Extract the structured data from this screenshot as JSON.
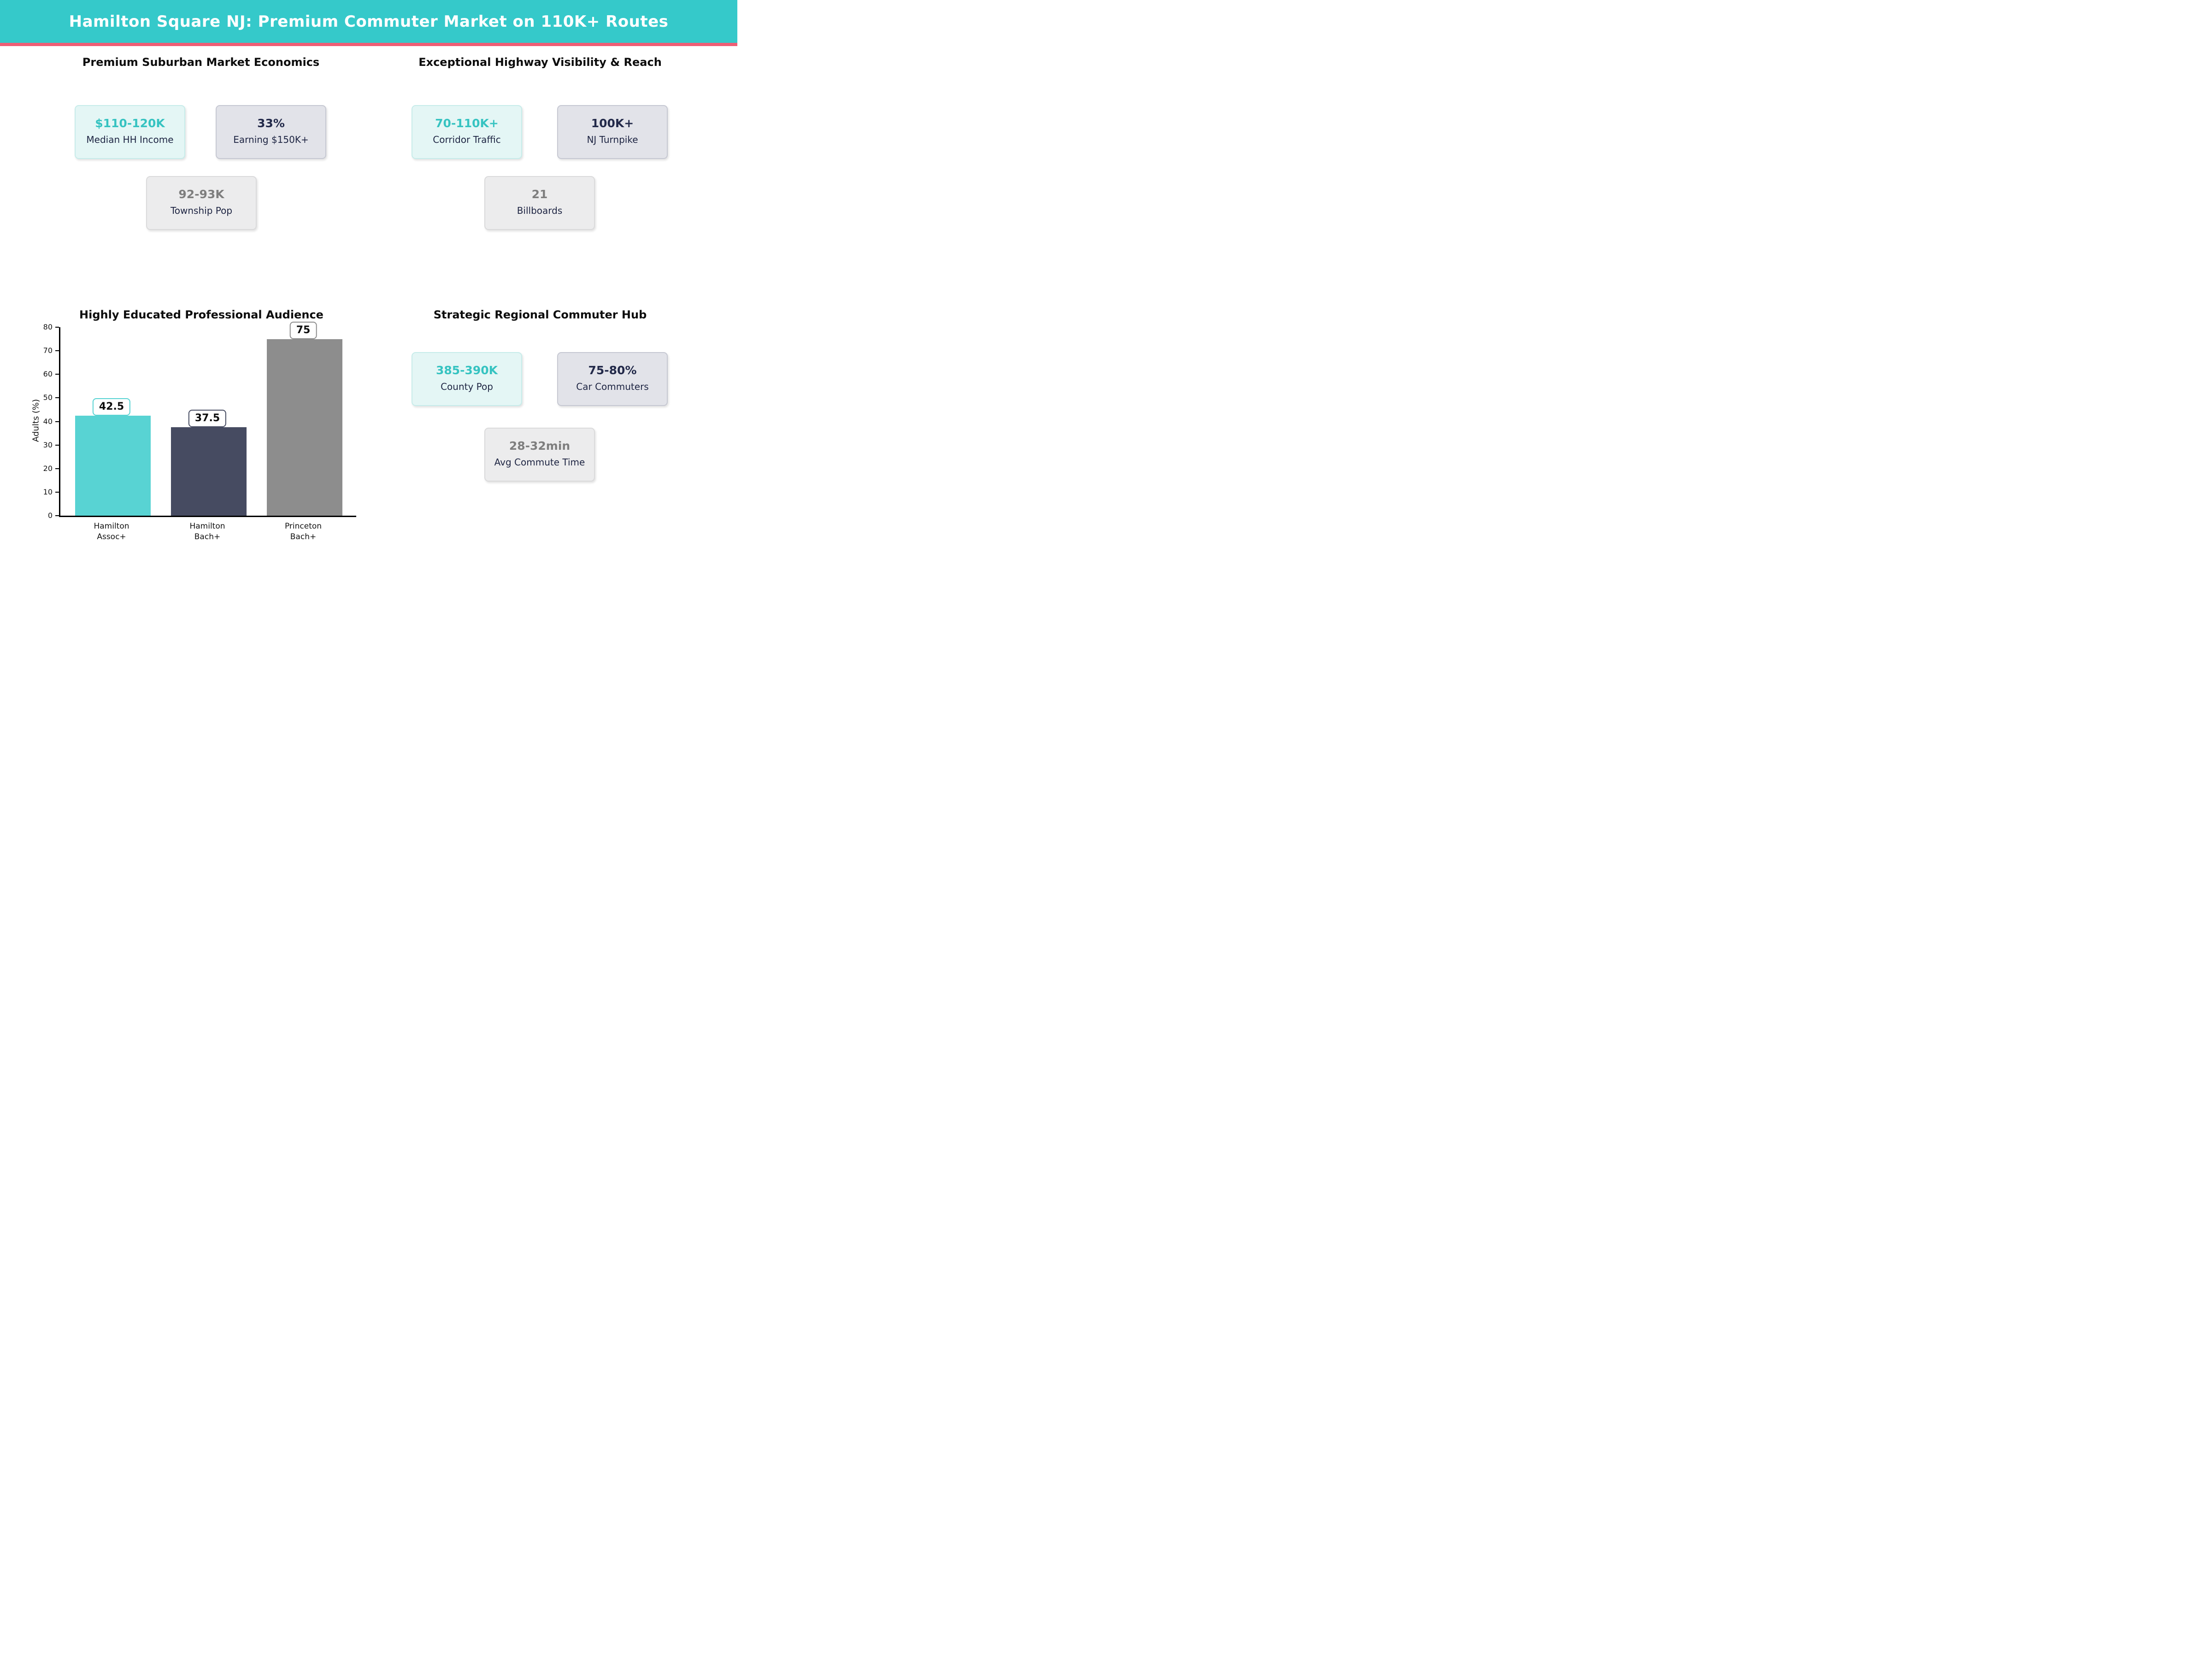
{
  "header": {
    "title": "Hamilton Square NJ: Premium Commuter Market on 110K+ Routes"
  },
  "colors": {
    "header_bg": "#35c9ca",
    "header_accent_bar": "#ef5e75",
    "teal_text": "#36c3c1",
    "navy_text": "#232a4a",
    "gray_text": "#7e7e7e",
    "card_teal_bg": "#e4f6f5",
    "card_navy_bg": "#e2e3e9",
    "card_gray_bg": "#ececed"
  },
  "sections": {
    "market": {
      "title": "Premium Suburban Market Economics",
      "cards": [
        {
          "value": "$110-120K",
          "label": "Median HH Income",
          "style": "teal"
        },
        {
          "value": "33%",
          "label": "Earning $150K+",
          "style": "navy"
        },
        {
          "value": "92-93K",
          "label": "Township Pop",
          "style": "gray"
        }
      ]
    },
    "highway": {
      "title": "Exceptional Highway Visibility & Reach",
      "cards": [
        {
          "value": "70-110K+",
          "label": "Corridor Traffic",
          "style": "teal"
        },
        {
          "value": "100K+",
          "label": "NJ Turnpike",
          "style": "navy"
        },
        {
          "value": "21",
          "label": "Billboards",
          "style": "gray"
        }
      ]
    },
    "commuter": {
      "title": "Strategic Regional Commuter Hub",
      "cards": [
        {
          "value": "385-390K",
          "label": "County Pop",
          "style": "teal"
        },
        {
          "value": "75-80%",
          "label": "Car Commuters",
          "style": "navy"
        },
        {
          "value": "28-32min",
          "label": "Avg Commute Time",
          "style": "gray"
        }
      ]
    }
  },
  "chart_data": {
    "type": "bar",
    "title": "Highly Educated Professional Audience",
    "categories": [
      "Hamilton\nAssoc+",
      "Hamilton\nBach+",
      "Princeton\nBach+"
    ],
    "values": [
      42.5,
      37.5,
      75
    ],
    "value_labels": [
      "42.5",
      "37.5",
      "75"
    ],
    "bar_colors": [
      "#58d3d3",
      "#464b61",
      "#8d8d8d"
    ],
    "xlabel": "",
    "ylabel": "Adults (%)",
    "ylim": [
      0,
      80
    ],
    "yticks": [
      0,
      10,
      20,
      30,
      40,
      50,
      60,
      70,
      80
    ],
    "grid": false,
    "legend_position": "none"
  }
}
